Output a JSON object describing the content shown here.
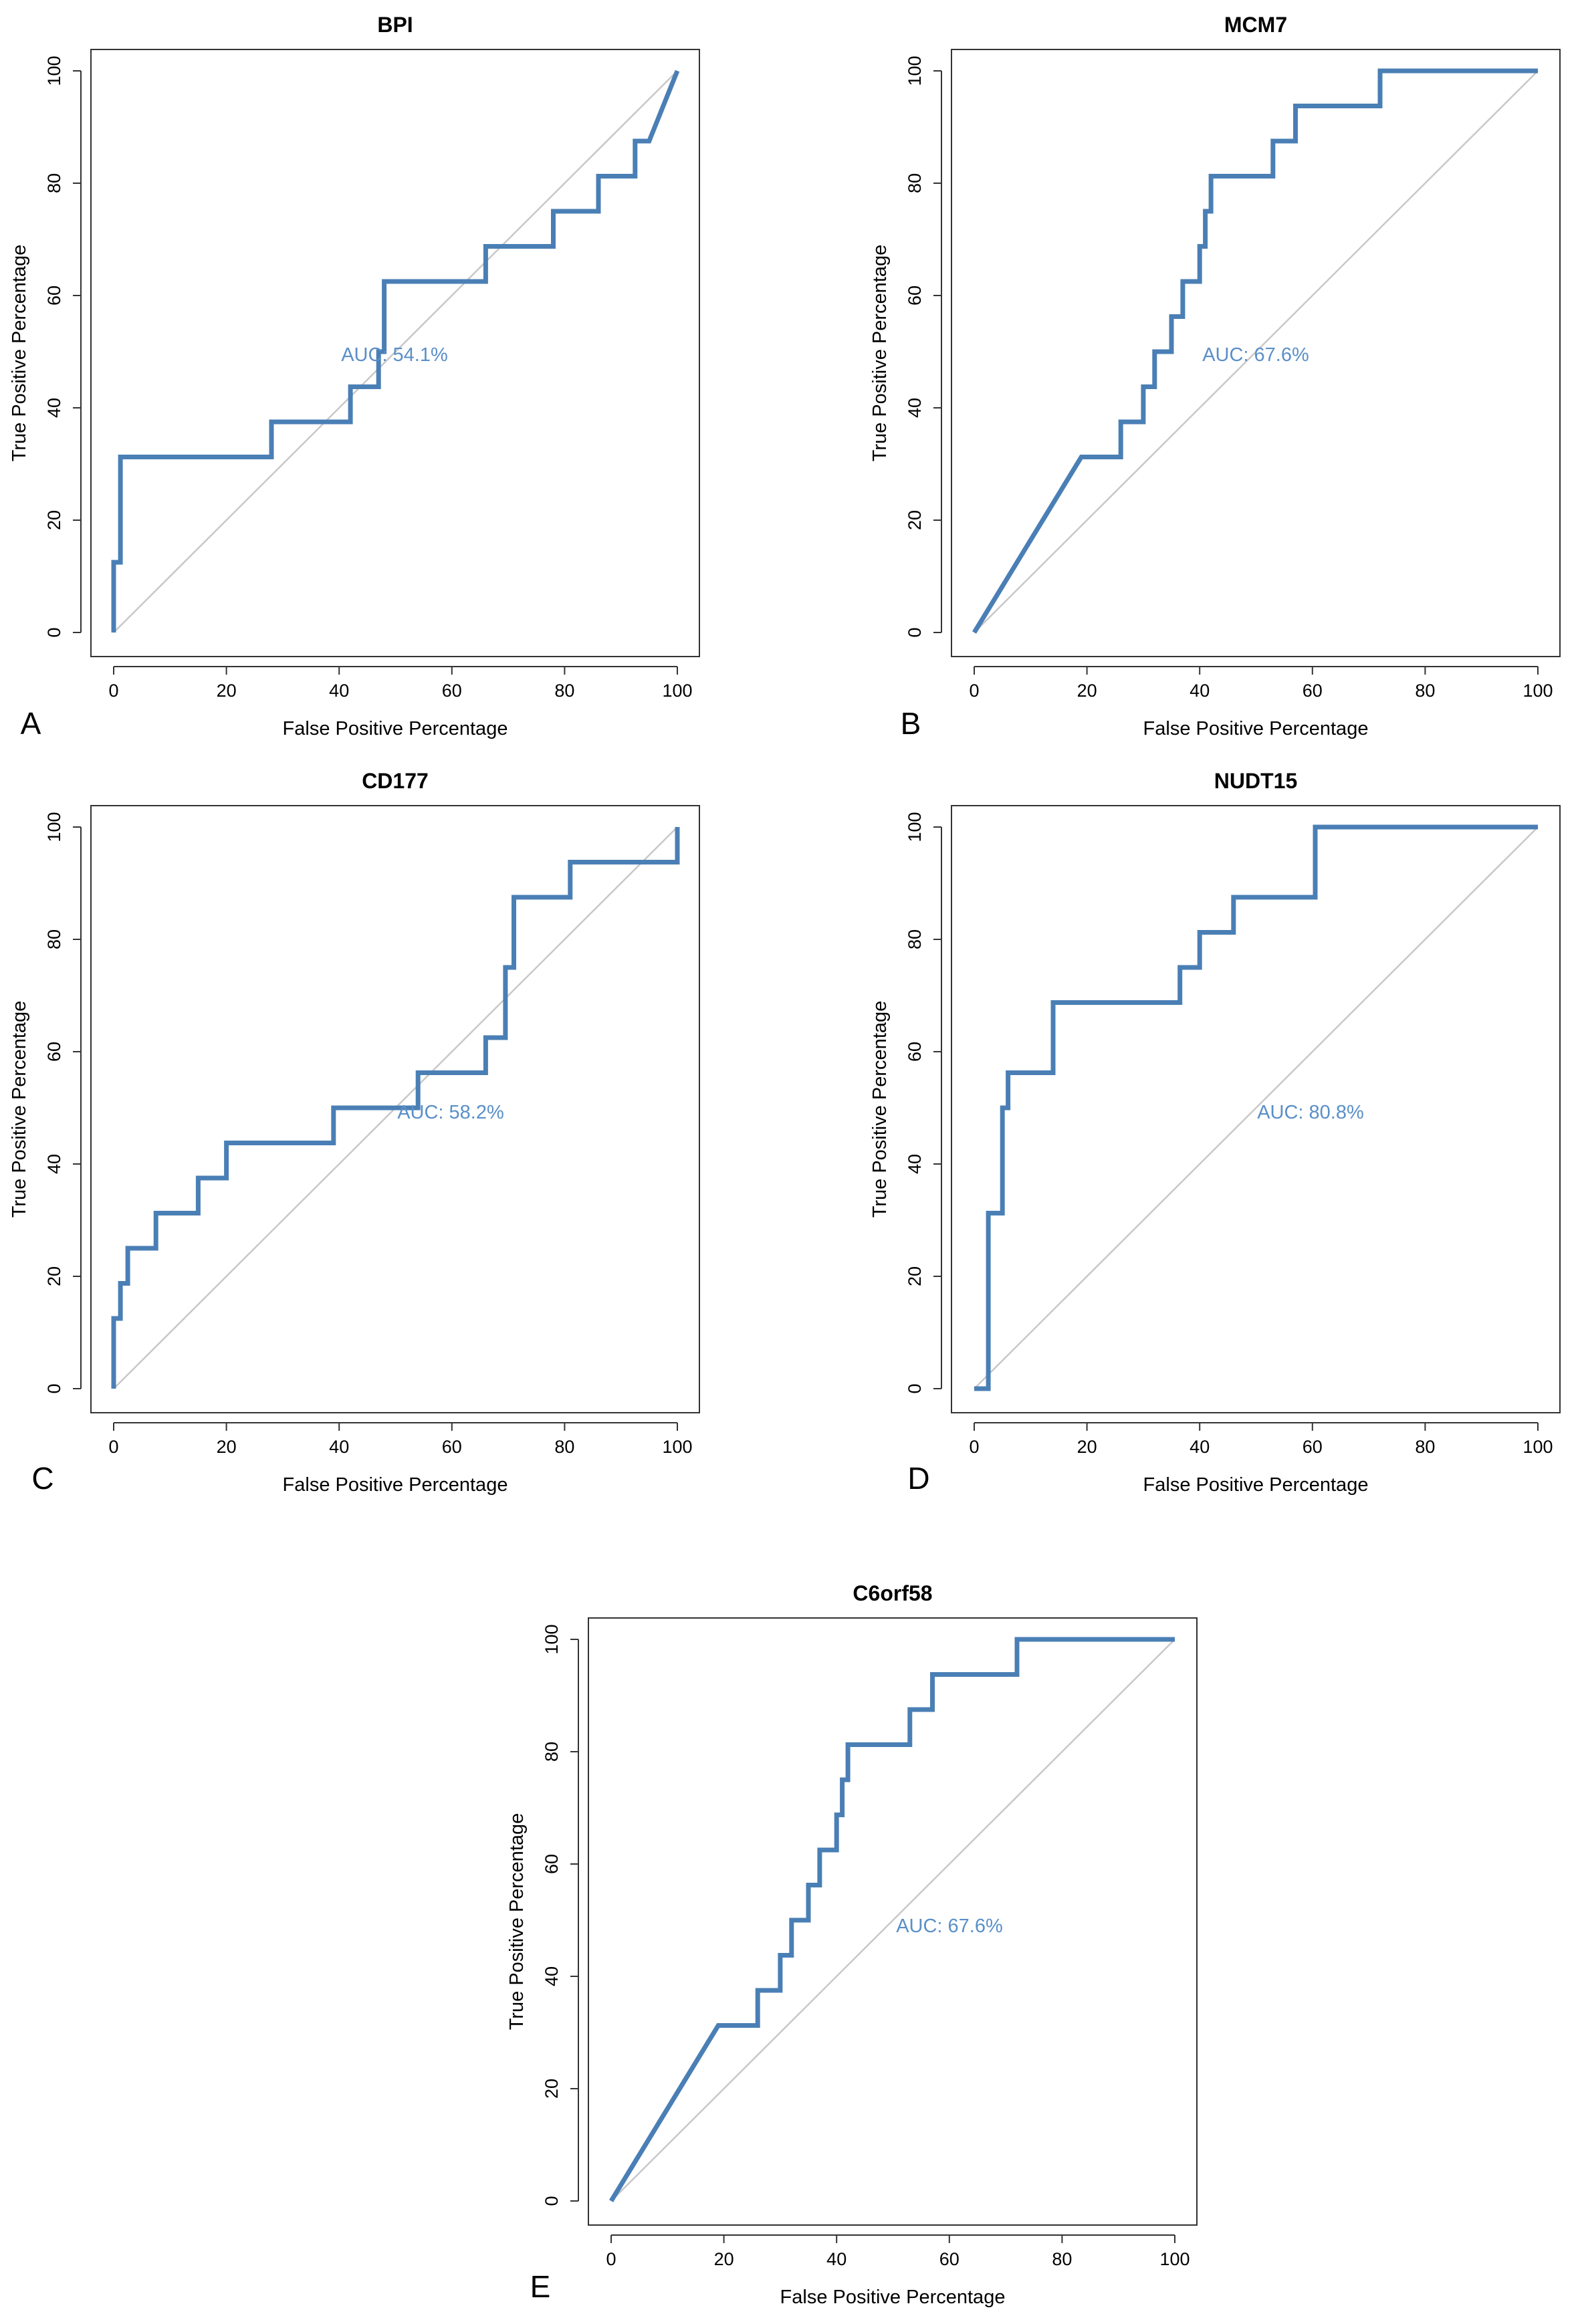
{
  "colors": {
    "roc": "#4a7fb5",
    "auc_text": "#5a8fc8",
    "diagonal": "#c8c8c8",
    "frame": "#333333"
  },
  "chart_data": [
    {
      "panel": "A",
      "type": "line",
      "title": "BPI",
      "xlabel": "False Positive Percentage",
      "ylabel": "True Positive Percentage",
      "xlim": [
        0,
        100
      ],
      "ylim": [
        0,
        100
      ],
      "xticks": [
        0,
        20,
        40,
        60,
        80,
        100
      ],
      "yticks": [
        0,
        20,
        40,
        60,
        80,
        100
      ],
      "auc_label": "AUC: 54.1%",
      "series": [
        {
          "name": "ROC",
          "x": [
            0,
            0,
            1.2,
            1.2,
            28,
            28,
            42,
            42,
            47,
            47,
            48,
            48,
            66,
            66,
            78,
            78,
            86,
            86,
            92.5,
            92.5,
            95,
            100
          ],
          "y": [
            0,
            12.5,
            12.5,
            31.25,
            31.25,
            37.5,
            37.5,
            43.75,
            43.75,
            50,
            50,
            62.5,
            62.5,
            68.75,
            68.75,
            75,
            75,
            81.25,
            81.25,
            87.5,
            87.5,
            100
          ]
        }
      ]
    },
    {
      "panel": "B",
      "type": "line",
      "title": "MCM7",
      "xlabel": "False Positive Percentage",
      "ylabel": "True Positive Percentage",
      "xlim": [
        0,
        100
      ],
      "ylim": [
        0,
        100
      ],
      "xticks": [
        0,
        20,
        40,
        60,
        80,
        100
      ],
      "yticks": [
        0,
        20,
        40,
        60,
        80,
        100
      ],
      "auc_label": "AUC: 67.6%",
      "series": [
        {
          "name": "ROC",
          "x": [
            0,
            19,
            26,
            26,
            30,
            30,
            32,
            32,
            35,
            35,
            37,
            37,
            40,
            40,
            41,
            41,
            42,
            42,
            53,
            53,
            57,
            57,
            72,
            72,
            100
          ],
          "y": [
            0,
            31.25,
            31.25,
            37.5,
            37.5,
            43.75,
            43.75,
            50,
            50,
            56.25,
            56.25,
            62.5,
            62.5,
            68.75,
            68.75,
            75,
            75,
            81.25,
            81.25,
            87.5,
            87.5,
            93.75,
            93.75,
            100,
            100
          ]
        }
      ]
    },
    {
      "panel": "C",
      "type": "line",
      "title": "CD177",
      "xlabel": "False Positive Percentage",
      "ylabel": "True Positive Percentage",
      "xlim": [
        0,
        100
      ],
      "ylim": [
        0,
        100
      ],
      "xticks": [
        0,
        20,
        40,
        60,
        80,
        100
      ],
      "yticks": [
        0,
        20,
        40,
        60,
        80,
        100
      ],
      "auc_label": "AUC: 58.2%",
      "series": [
        {
          "name": "ROC",
          "x": [
            0,
            0,
            1.2,
            1.2,
            2.5,
            2.5,
            7.5,
            7.5,
            15,
            15,
            20,
            20,
            39,
            39,
            54,
            54,
            66,
            66,
            69.5,
            69.5,
            71,
            71,
            81,
            81,
            100,
            100
          ],
          "y": [
            0,
            12.5,
            12.5,
            18.75,
            18.75,
            25,
            25,
            31.25,
            31.25,
            37.5,
            37.5,
            43.75,
            43.75,
            50,
            50,
            56.25,
            56.25,
            62.5,
            62.5,
            75,
            75,
            87.5,
            87.5,
            93.75,
            93.75,
            100
          ]
        }
      ]
    },
    {
      "panel": "D",
      "type": "line",
      "title": "NUDT15",
      "xlabel": "False Positive Percentage",
      "ylabel": "True Positive Percentage",
      "xlim": [
        0,
        100
      ],
      "ylim": [
        0,
        100
      ],
      "xticks": [
        0,
        20,
        40,
        60,
        80,
        100
      ],
      "yticks": [
        0,
        20,
        40,
        60,
        80,
        100
      ],
      "auc_label": "AUC: 80.8%",
      "series": [
        {
          "name": "ROC",
          "x": [
            0,
            2.5,
            2.5,
            5,
            5,
            6,
            6,
            14,
            14,
            36.5,
            36.5,
            40,
            40,
            46,
            46,
            60.5,
            60.5,
            100
          ],
          "y": [
            0,
            0,
            31.25,
            31.25,
            50,
            50,
            56.25,
            56.25,
            68.75,
            68.75,
            75,
            75,
            81.25,
            81.25,
            87.5,
            87.5,
            100,
            100
          ]
        }
      ]
    },
    {
      "panel": "E",
      "type": "line",
      "title": "C6orf58",
      "xlabel": "False Positive Percentage",
      "ylabel": "True Positive Percentage",
      "xlim": [
        0,
        100
      ],
      "ylim": [
        0,
        100
      ],
      "xticks": [
        0,
        20,
        40,
        60,
        80,
        100
      ],
      "yticks": [
        0,
        20,
        40,
        60,
        80,
        100
      ],
      "auc_label": "AUC: 67.6%",
      "series": [
        {
          "name": "ROC",
          "x": [
            0,
            19,
            26,
            26,
            30,
            30,
            32,
            32,
            35,
            35,
            37,
            37,
            40,
            40,
            41,
            41,
            42,
            42,
            53,
            53,
            57,
            57,
            72,
            72,
            100
          ],
          "y": [
            0,
            31.25,
            31.25,
            37.5,
            37.5,
            43.75,
            43.75,
            50,
            50,
            56.25,
            56.25,
            62.5,
            62.5,
            68.75,
            68.75,
            75,
            75,
            81.25,
            81.25,
            87.5,
            87.5,
            93.75,
            93.75,
            100,
            100
          ]
        }
      ]
    }
  ]
}
